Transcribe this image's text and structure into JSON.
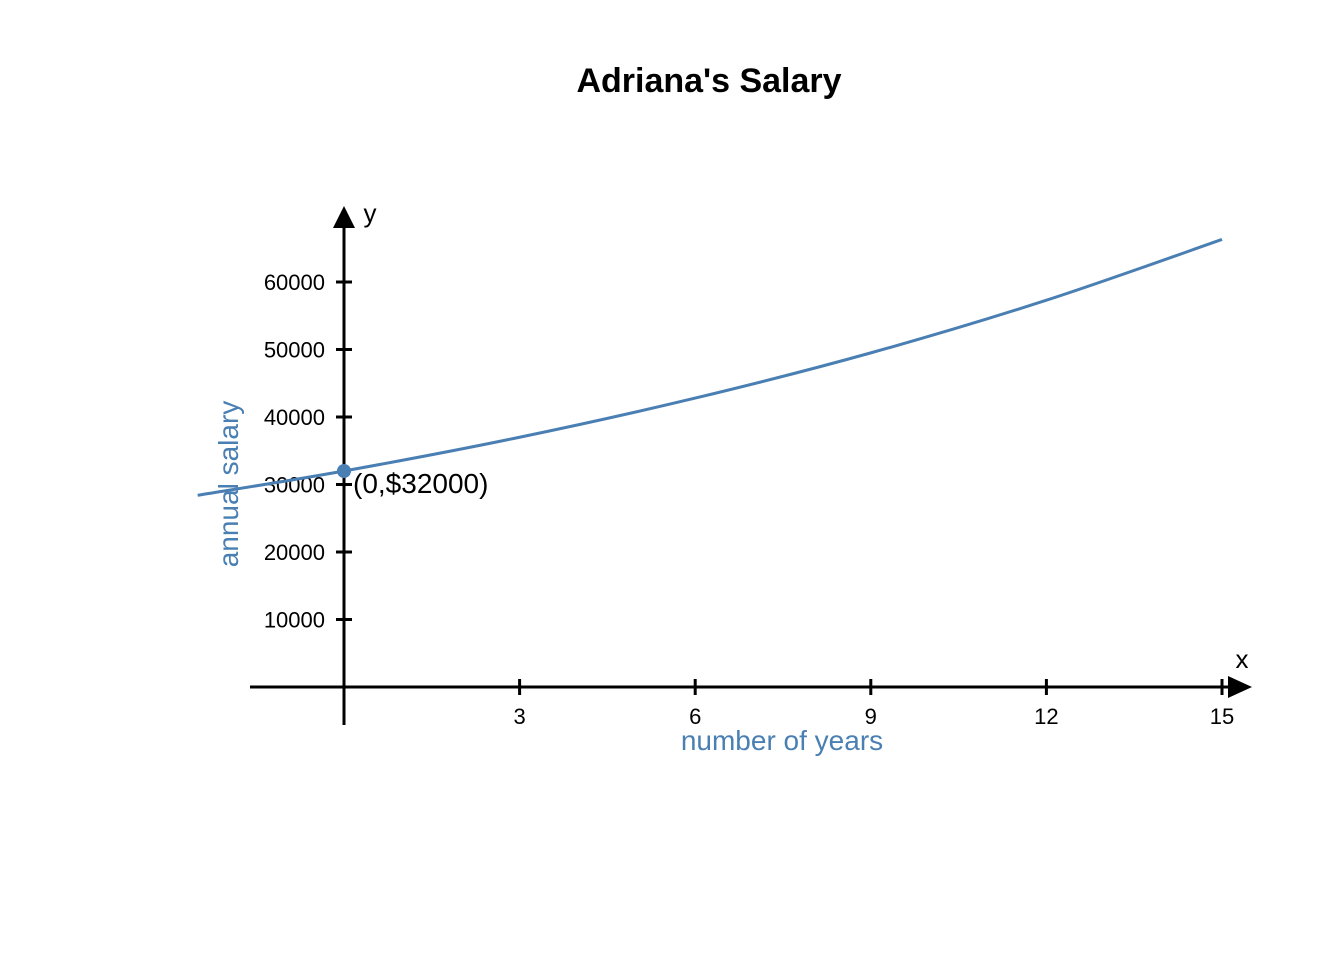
{
  "chart_data": {
    "type": "line",
    "title": "Adriana's Salary",
    "xlabel": "number of years",
    "ylabel": "annual salary",
    "x_axis_letter": "x",
    "y_axis_letter": "y",
    "xlim": [
      -3.2,
      15.5
    ],
    "ylim": [
      -5500,
      70000
    ],
    "x_ticks": [
      3,
      6,
      9,
      12,
      15
    ],
    "y_ticks": [
      10000,
      20000,
      30000,
      40000,
      50000,
      60000
    ],
    "grid": false,
    "series": [
      {
        "x": [
          -2.5,
          0,
          3,
          6,
          9,
          12,
          15
        ],
        "y": [
          28400,
          32000,
          37000,
          42800,
          49500,
          57300,
          66300
        ]
      }
    ],
    "annotations": [
      {
        "x": 0,
        "y": 32000,
        "text": "(0,$32000)"
      }
    ],
    "colors": {
      "curve": "#4a7fb3",
      "axis": "#000000",
      "axis_title": "#4a7fb3"
    }
  }
}
